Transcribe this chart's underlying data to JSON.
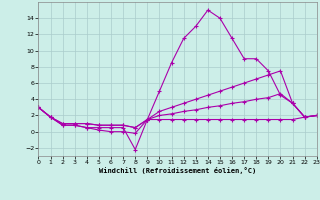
{
  "xlabel": "Windchill (Refroidissement éolien,°C)",
  "background_color": "#cceee8",
  "grid_color": "#aacccc",
  "line_color": "#aa00aa",
  "x_all": [
    0,
    1,
    2,
    3,
    4,
    5,
    6,
    7,
    8,
    9,
    10,
    11,
    12,
    13,
    14,
    15,
    16,
    17,
    18,
    19,
    20,
    21,
    22,
    23
  ],
  "series1": [
    3.0,
    1.8,
    0.8,
    0.8,
    0.5,
    0.2,
    0.0,
    0.0,
    -0.2,
    1.5,
    5.0,
    8.5,
    11.5,
    13.0,
    15.0,
    14.0,
    11.5,
    9.0,
    9.0,
    7.5,
    4.5,
    3.5,
    1.8,
    2.0
  ],
  "series2": [
    3.0,
    1.8,
    0.8,
    0.8,
    0.5,
    0.5,
    0.5,
    0.5,
    -2.2,
    1.5,
    1.5,
    1.5,
    1.5,
    1.5,
    1.5,
    1.5,
    1.5,
    1.5,
    1.5,
    1.5,
    1.5,
    1.5,
    1.8,
    2.0
  ],
  "series3": [
    3.0,
    1.8,
    1.0,
    1.0,
    1.0,
    0.8,
    0.8,
    0.8,
    0.5,
    1.5,
    2.5,
    3.0,
    3.5,
    4.0,
    4.5,
    5.0,
    5.5,
    6.0,
    6.5,
    7.0,
    7.5,
    3.5,
    1.8,
    2.0
  ],
  "series4": [
    3.0,
    1.8,
    1.0,
    1.0,
    1.0,
    0.8,
    0.8,
    0.8,
    0.5,
    1.5,
    2.0,
    2.2,
    2.5,
    2.7,
    3.0,
    3.2,
    3.5,
    3.7,
    4.0,
    4.2,
    4.7,
    3.5,
    1.8,
    2.0
  ],
  "ylim": [
    -3,
    16
  ],
  "xlim": [
    0,
    23
  ],
  "yticks": [
    -2,
    0,
    2,
    4,
    6,
    8,
    10,
    12,
    14
  ],
  "xticks": [
    0,
    1,
    2,
    3,
    4,
    5,
    6,
    7,
    8,
    9,
    10,
    11,
    12,
    13,
    14,
    15,
    16,
    17,
    18,
    19,
    20,
    21,
    22,
    23
  ]
}
